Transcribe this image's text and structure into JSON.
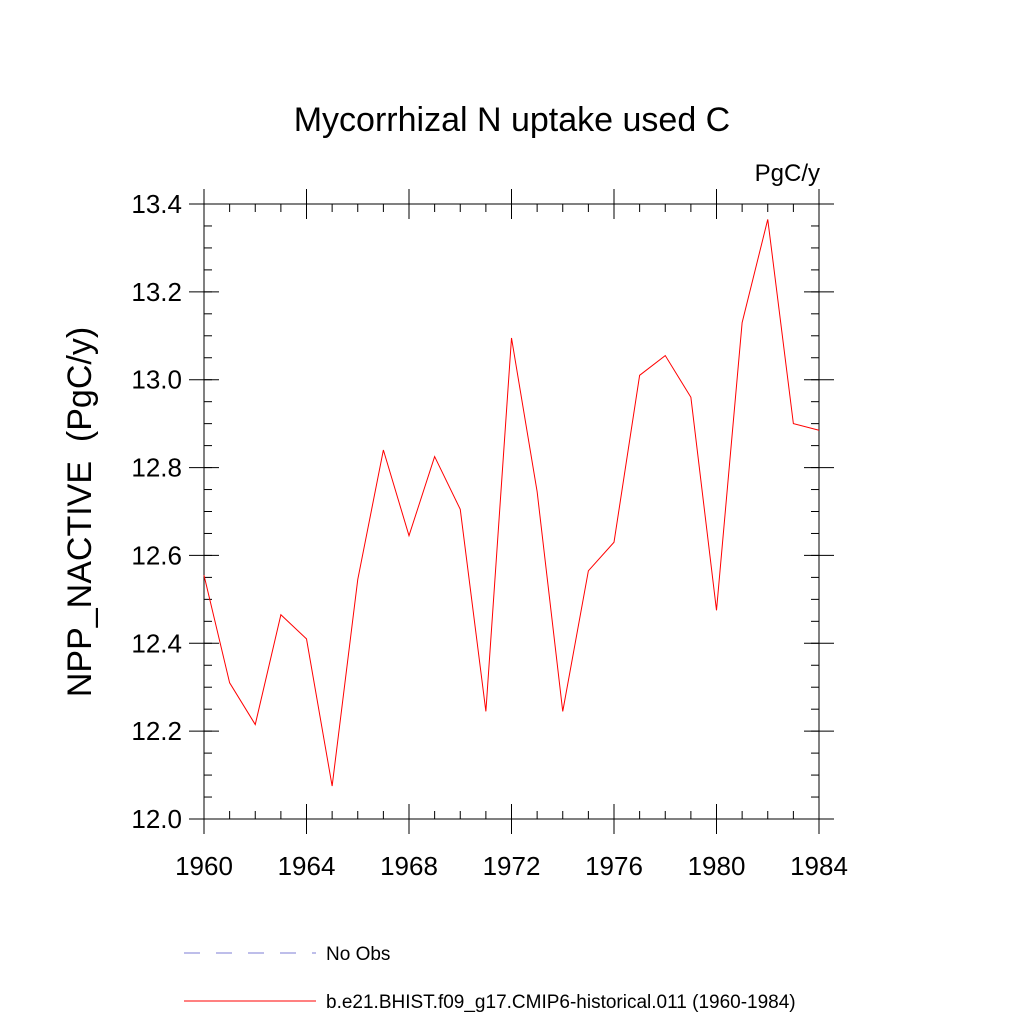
{
  "chart_data": {
    "type": "line",
    "title": "Mycorrhizal N uptake used C",
    "units_label": "PgC/y",
    "ylabel": "NPP_NACTIVE  (PgC/y)",
    "xlabel": "",
    "xlim": [
      1960,
      1984
    ],
    "ylim": [
      12.0,
      13.4
    ],
    "x_ticks": [
      1960,
      1964,
      1968,
      1972,
      1976,
      1980,
      1984
    ],
    "x_tick_labels": [
      "1960",
      "1964",
      "1968",
      "1972",
      "1976",
      "1980",
      "1984"
    ],
    "y_ticks": [
      12.0,
      12.2,
      12.4,
      12.6,
      12.8,
      13.0,
      13.2,
      13.4
    ],
    "y_tick_labels": [
      "12.0",
      "12.2",
      "12.4",
      "12.6",
      "12.8",
      "13.0",
      "13.2",
      "13.4"
    ],
    "grid": false,
    "legend_position": "bottom",
    "series": [
      {
        "name": "b.e21.BHIST.f09_g17.CMIP6-historical.011 (1960-1984)",
        "color": "#ff0000",
        "x": [
          1960,
          1961,
          1962,
          1963,
          1964,
          1965,
          1966,
          1967,
          1968,
          1969,
          1970,
          1971,
          1972,
          1973,
          1974,
          1975,
          1976,
          1977,
          1978,
          1979,
          1980,
          1981,
          1982,
          1983,
          1984
        ],
        "values": [
          12.555,
          12.31,
          12.215,
          12.465,
          12.41,
          12.075,
          12.545,
          12.84,
          12.645,
          12.825,
          12.705,
          12.245,
          13.095,
          12.745,
          12.245,
          12.565,
          12.63,
          13.01,
          13.055,
          12.96,
          12.475,
          13.13,
          13.365,
          12.9,
          12.885
        ]
      }
    ],
    "legend": [
      {
        "label": "No Obs",
        "color": "#7d7dd6",
        "style": "dashed"
      },
      {
        "label": "b.e21.BHIST.f09_g17.CMIP6-historical.011 (1960-1984)",
        "color": "#ff0000",
        "style": "solid"
      }
    ]
  }
}
